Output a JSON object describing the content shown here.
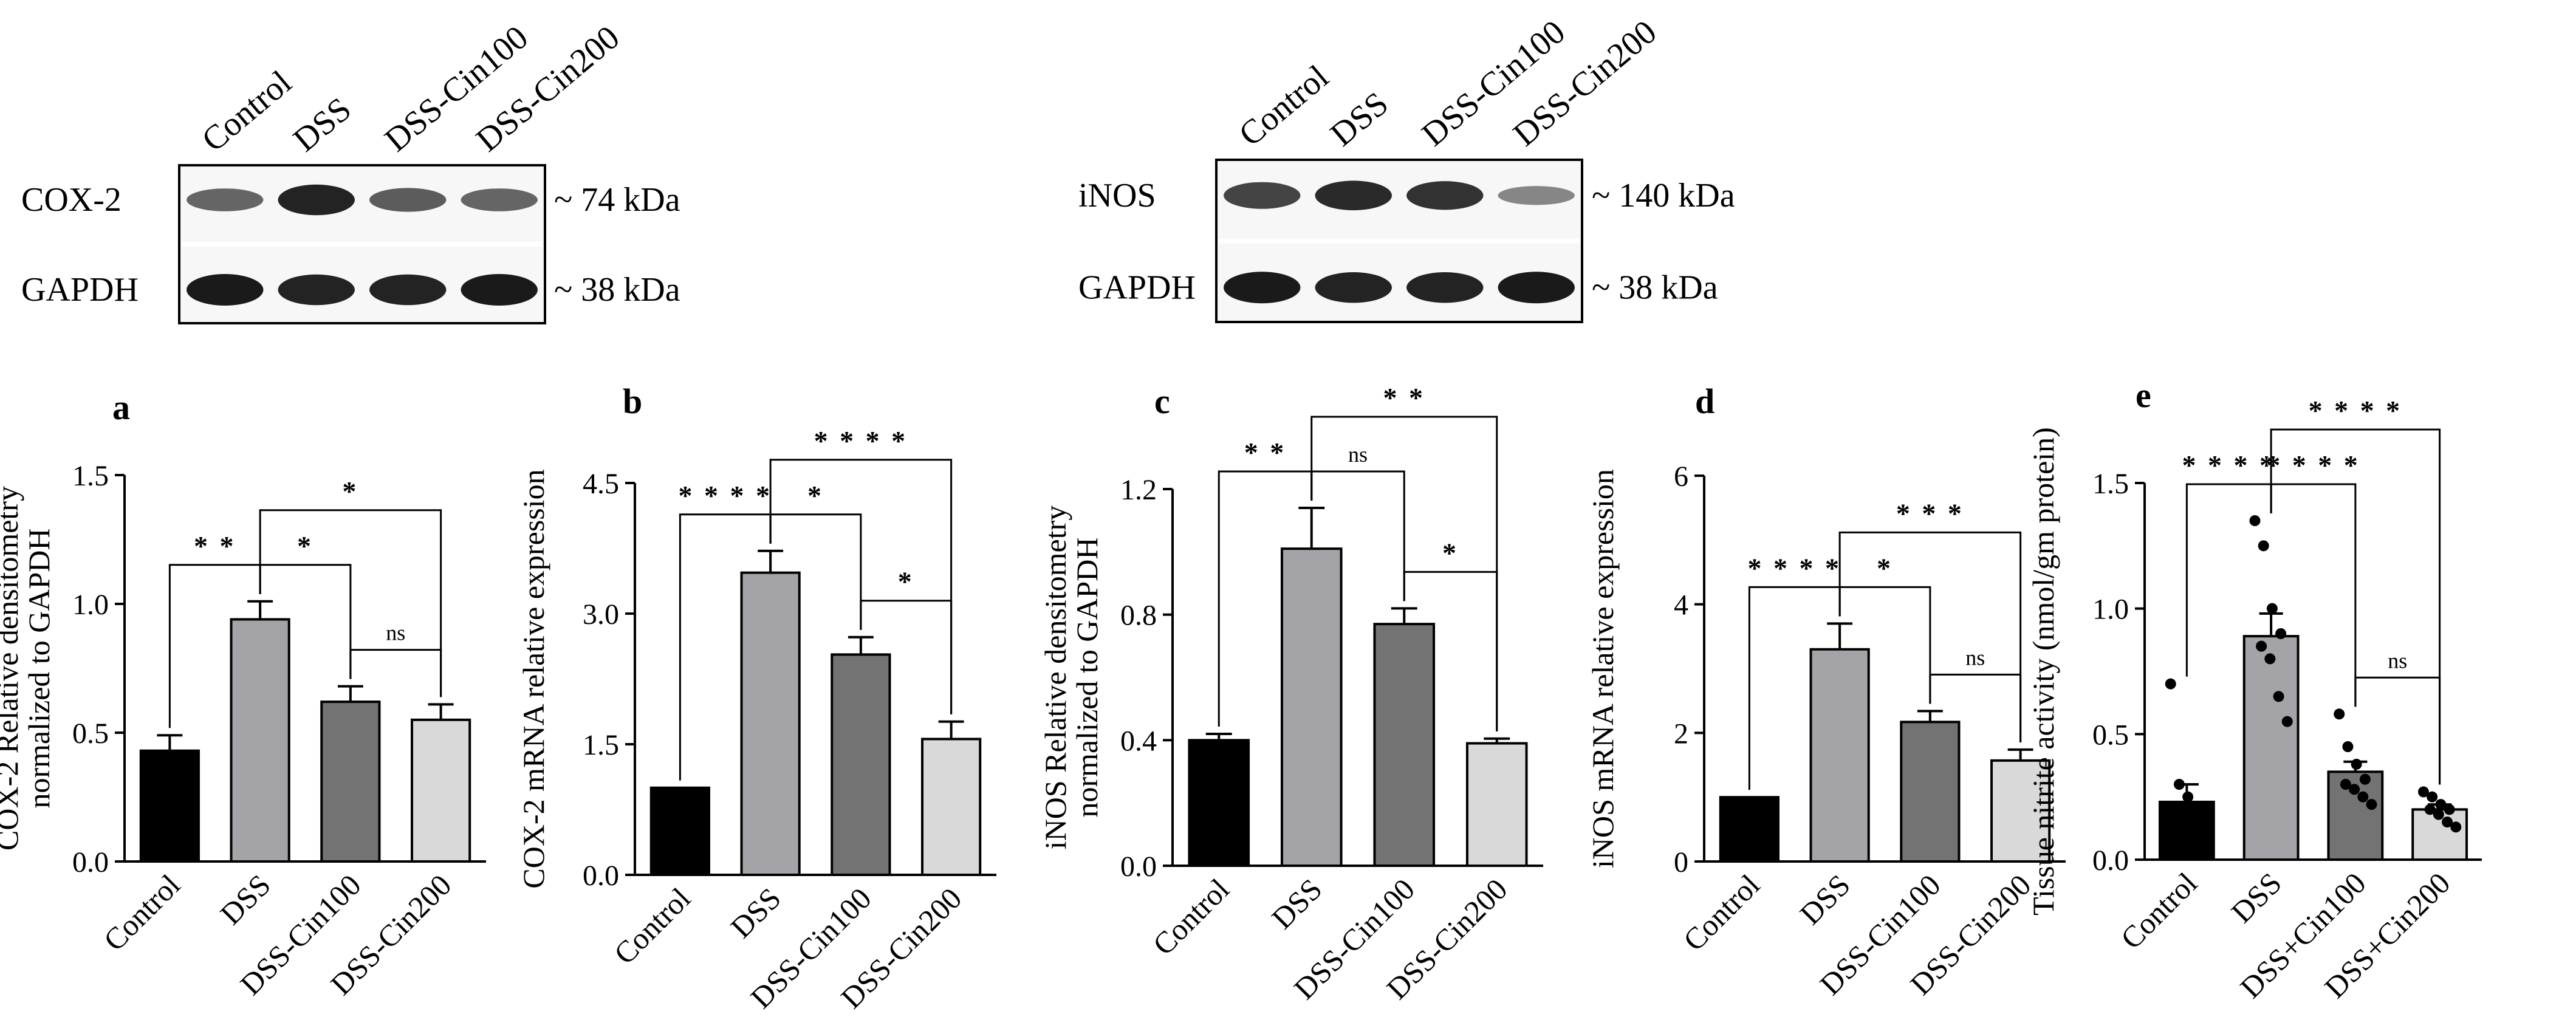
{
  "colors": {
    "control": "#000000",
    "dss": "#a3a3a8",
    "cin100": "#737373",
    "cin200": "#d9d9d9",
    "axis": "#000000",
    "blot_background": "#f7f7f7",
    "band": "#1a1a1a"
  },
  "blots": [
    {
      "lanes": [
        "Control",
        "DSS",
        "DSS-Cin100",
        "DSS-Cin200"
      ],
      "rows": [
        {
          "protein": "COX-2",
          "size": "~ 74 kDa",
          "intensity": [
            0.55,
            0.95,
            0.6,
            0.55
          ]
        },
        {
          "protein": "GAPDH",
          "size": "~ 38 kDa",
          "intensity": [
            1.0,
            0.95,
            0.95,
            1.0
          ]
        }
      ]
    },
    {
      "lanes": [
        "Control",
        "DSS",
        "DSS-Cin100",
        "DSS-Cin200"
      ],
      "rows": [
        {
          "protein": "iNOS",
          "size": "~ 140 kDa",
          "intensity": [
            0.75,
            0.9,
            0.85,
            0.35
          ]
        },
        {
          "protein": "GAPDH",
          "size": "~ 38 kDa",
          "intensity": [
            1.0,
            0.95,
            0.95,
            1.0
          ]
        }
      ]
    }
  ],
  "chart_data": [
    {
      "type": "bar",
      "panel_label": "a",
      "ylabel": "COX-2 Relative densitometry normalized to GAPDH",
      "ylabel_lines": [
        "COX-2 Relative densitometry",
        "normalized to GAPDH"
      ],
      "categories": [
        "Control",
        "DSS",
        "DSS-Cin100",
        "DSS-Cin200"
      ],
      "values": [
        0.43,
        0.94,
        0.62,
        0.55
      ],
      "errors": [
        0.06,
        0.07,
        0.06,
        0.06
      ],
      "ylim": [
        0,
        1.5
      ],
      "yticks": [
        0,
        0.5,
        1.0,
        1.5
      ],
      "ytick_labels": [
        "0.0",
        "0.5",
        "1.0",
        "1.5"
      ],
      "brackets": [
        {
          "from": 0,
          "to": 1,
          "label": "* *"
        },
        {
          "from": 1,
          "to": 2,
          "label": "*"
        },
        {
          "from": 2,
          "to": 3,
          "label": "ns"
        },
        {
          "from": 1,
          "to": 3,
          "label": "*"
        }
      ]
    },
    {
      "type": "bar",
      "panel_label": "b",
      "ylabel": "COX-2 mRNA relative expression",
      "ylabel_lines": [
        "COX-2 mRNA relative expression"
      ],
      "categories": [
        "Control",
        "DSS",
        "DSS-Cin100",
        "DSS-Cin200"
      ],
      "values": [
        1.0,
        3.47,
        2.53,
        1.56
      ],
      "errors": [
        0,
        0.25,
        0.2,
        0.2
      ],
      "ylim": [
        0,
        4.5
      ],
      "yticks": [
        0,
        1.5,
        3.0,
        4.5
      ],
      "ytick_labels": [
        "0.0",
        "1.5",
        "3.0",
        "4.5"
      ],
      "brackets": [
        {
          "from": 0,
          "to": 1,
          "label": "* * * *"
        },
        {
          "from": 1,
          "to": 2,
          "label": "*"
        },
        {
          "from": 2,
          "to": 3,
          "label": "*"
        },
        {
          "from": 1,
          "to": 3,
          "label": "* * * *"
        }
      ]
    },
    {
      "type": "bar",
      "panel_label": "c",
      "ylabel": "iNOS Relative densitometry normalized to GAPDH",
      "ylabel_lines": [
        "iNOS Relative densitometry",
        "normalized to GAPDH"
      ],
      "categories": [
        "Control",
        "DSS",
        "DSS-Cin100",
        "DSS-Cin200"
      ],
      "values": [
        0.4,
        1.01,
        0.77,
        0.39
      ],
      "errors": [
        0.02,
        0.13,
        0.05,
        0.015
      ],
      "ylim": [
        0,
        1.2
      ],
      "yticks": [
        0,
        0.4,
        0.8,
        1.2
      ],
      "ytick_labels": [
        "0.0",
        "0.4",
        "0.8",
        "1.2"
      ],
      "brackets": [
        {
          "from": 0,
          "to": 1,
          "label": "* *"
        },
        {
          "from": 1,
          "to": 2,
          "label": "ns"
        },
        {
          "from": 2,
          "to": 3,
          "label": "*"
        },
        {
          "from": 1,
          "to": 3,
          "label": "* *"
        }
      ]
    },
    {
      "type": "bar",
      "panel_label": "d",
      "ylabel": "iNOS mRNA relative expression",
      "ylabel_lines": [
        "iNOS mRNA relative expression"
      ],
      "categories": [
        "Control",
        "DSS",
        "DSS-Cin100",
        "DSS-Cin200"
      ],
      "values": [
        1.0,
        3.3,
        2.17,
        1.57
      ],
      "errors": [
        0,
        0.4,
        0.17,
        0.17
      ],
      "ylim": [
        0,
        6
      ],
      "yticks": [
        0,
        2,
        4,
        6
      ],
      "ytick_labels": [
        "0",
        "2",
        "4",
        "6"
      ],
      "brackets": [
        {
          "from": 0,
          "to": 1,
          "label": "* * * *"
        },
        {
          "from": 1,
          "to": 2,
          "label": "*"
        },
        {
          "from": 2,
          "to": 3,
          "label": "ns"
        },
        {
          "from": 1,
          "to": 3,
          "label": "* * *"
        }
      ]
    },
    {
      "type": "bar",
      "panel_label": "e",
      "ylabel": "Tissue nitrite activity (nmol/gm protein)",
      "ylabel_lines": [
        "Tissue nitrite activity (nmol/gm protein)"
      ],
      "categories": [
        "Control",
        "DSS",
        "DSS+Cin100",
        "DSS+Cin200"
      ],
      "values": [
        0.23,
        0.89,
        0.35,
        0.2
      ],
      "errors": [
        0.07,
        0.09,
        0.04,
        0.02
      ],
      "ylim": [
        0,
        1.5
      ],
      "yticks": [
        0,
        0.5,
        1.0,
        1.5
      ],
      "ytick_labels": [
        "0.0",
        "0.5",
        "1.0",
        "1.5"
      ],
      "points": [
        [
          0.7,
          0.3,
          0.25,
          0.2,
          0.15,
          0.12,
          0.07,
          0.05
        ],
        [
          1.35,
          1.25,
          1.0,
          0.9,
          0.85,
          0.8,
          0.65,
          0.55
        ],
        [
          0.58,
          0.45,
          0.38,
          0.32,
          0.3,
          0.28,
          0.25,
          0.22
        ],
        [
          0.27,
          0.25,
          0.22,
          0.2,
          0.2,
          0.18,
          0.15,
          0.13
        ]
      ],
      "brackets": [
        {
          "from": 0,
          "to": 1,
          "label": "* * * *"
        },
        {
          "from": 1,
          "to": 2,
          "label": "* * * *"
        },
        {
          "from": 2,
          "to": 3,
          "label": "ns"
        },
        {
          "from": 1,
          "to": 3,
          "label": "* * * *"
        }
      ]
    }
  ]
}
